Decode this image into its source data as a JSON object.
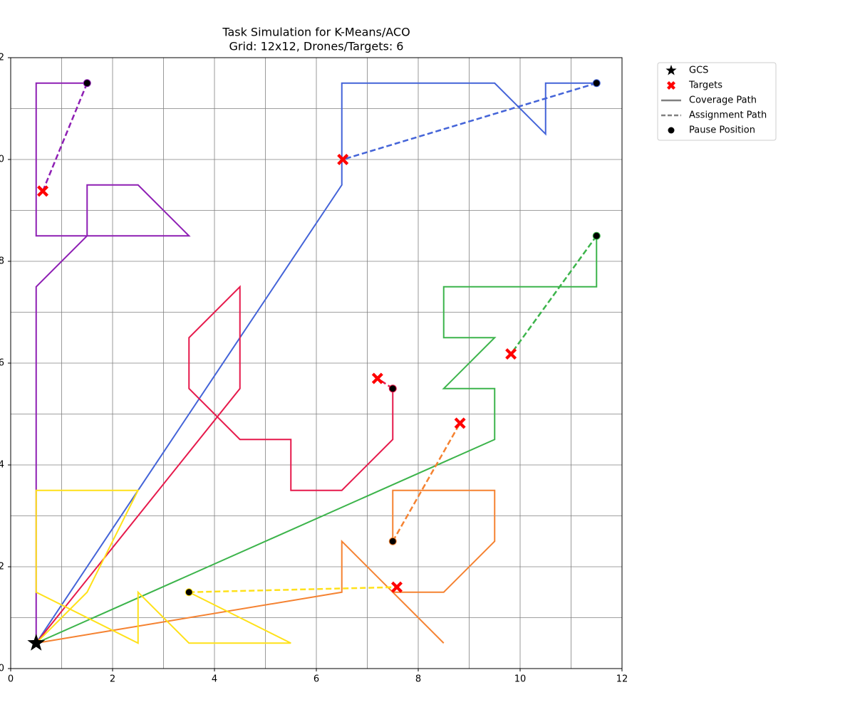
{
  "chart_data": {
    "type": "path",
    "title": "Task Simulation for K-Means/ACO",
    "subtitle": "Grid: 12x12, Drones/Targets: 6",
    "xlim": [
      0,
      12
    ],
    "ylim": [
      0,
      12
    ],
    "xticks": [
      0,
      2,
      4,
      6,
      8,
      10,
      12
    ],
    "yticks": [
      0,
      2,
      4,
      6,
      8,
      10,
      12
    ],
    "grid": true,
    "grid_lines": [
      0,
      1,
      2,
      3,
      4,
      5,
      6,
      7,
      8,
      9,
      10,
      11,
      12
    ],
    "legend_position": "outside upper right",
    "legend": [
      "GCS",
      "Targets",
      "Coverage Path",
      "Assignment Path",
      "Pause Position"
    ],
    "gcs": {
      "x": 0.5,
      "y": 0.5,
      "color": "#000000"
    },
    "target_color": "#ff0000",
    "pause_color": "#000000",
    "legend_line_color": "#808080",
    "drones": [
      {
        "color": "#8e1fb4",
        "coverage": {
          "x": [
            0.5,
            0.5,
            1.5,
            1.5,
            2.5,
            3.5,
            0.5,
            0.5,
            1.5
          ],
          "y": [
            0.5,
            7.5,
            8.5,
            9.5,
            9.5,
            8.5,
            8.5,
            11.5,
            11.5
          ]
        },
        "pause": {
          "x": 1.5,
          "y": 11.5
        },
        "target": {
          "x": 0.63,
          "y": 9.38
        }
      },
      {
        "color": "#4363d8",
        "coverage": {
          "x": [
            0.5,
            6.5,
            6.5,
            9.5,
            10.5,
            10.5,
            11.5
          ],
          "y": [
            0.5,
            9.5,
            11.5,
            11.5,
            10.5,
            11.5,
            11.5
          ]
        },
        "pause": {
          "x": 11.5,
          "y": 11.5
        },
        "target": {
          "x": 6.52,
          "y": 10.0
        }
      },
      {
        "color": "#3cb44b",
        "coverage": {
          "x": [
            0.5,
            9.5,
            9.5,
            8.5,
            9.5,
            8.5,
            8.5,
            11.5,
            11.5
          ],
          "y": [
            0.5,
            4.5,
            5.5,
            5.5,
            6.5,
            6.5,
            7.5,
            7.5,
            8.5
          ]
        },
        "pause": {
          "x": 11.5,
          "y": 8.5
        },
        "target": {
          "x": 9.82,
          "y": 6.18
        }
      },
      {
        "color": "#e6194b",
        "coverage": {
          "x": [
            0.5,
            4.5,
            4.5,
            3.5,
            3.5,
            4.5,
            5.5,
            5.5,
            6.5,
            7.5,
            7.5
          ],
          "y": [
            0.5,
            5.5,
            7.5,
            6.5,
            5.5,
            4.5,
            4.5,
            3.5,
            3.5,
            4.5,
            5.5
          ]
        },
        "pause": {
          "x": 7.5,
          "y": 5.5
        },
        "target": {
          "x": 7.2,
          "y": 5.7
        }
      },
      {
        "color": "#f58231",
        "coverage": {
          "x": [
            0.5,
            6.5,
            6.5,
            8.5,
            7.5,
            8.5,
            9.5,
            9.5,
            7.5,
            7.5
          ],
          "y": [
            0.5,
            1.5,
            2.5,
            0.5,
            1.5,
            1.5,
            2.5,
            3.5,
            3.5,
            2.5
          ]
        },
        "pause": {
          "x": 7.5,
          "y": 2.5
        },
        "target": {
          "x": 8.82,
          "y": 4.82
        }
      },
      {
        "color": "#ffe119",
        "coverage": {
          "x": [
            0.5,
            1.5,
            2.5,
            0.5,
            0.5,
            2.5,
            2.5,
            3.5,
            5.5,
            3.5
          ],
          "y": [
            0.5,
            1.5,
            3.5,
            3.5,
            1.5,
            0.5,
            1.5,
            0.5,
            0.5,
            1.5
          ]
        },
        "pause": {
          "x": 3.5,
          "y": 1.5
        },
        "target": {
          "x": 7.58,
          "y": 1.6
        }
      }
    ]
  }
}
